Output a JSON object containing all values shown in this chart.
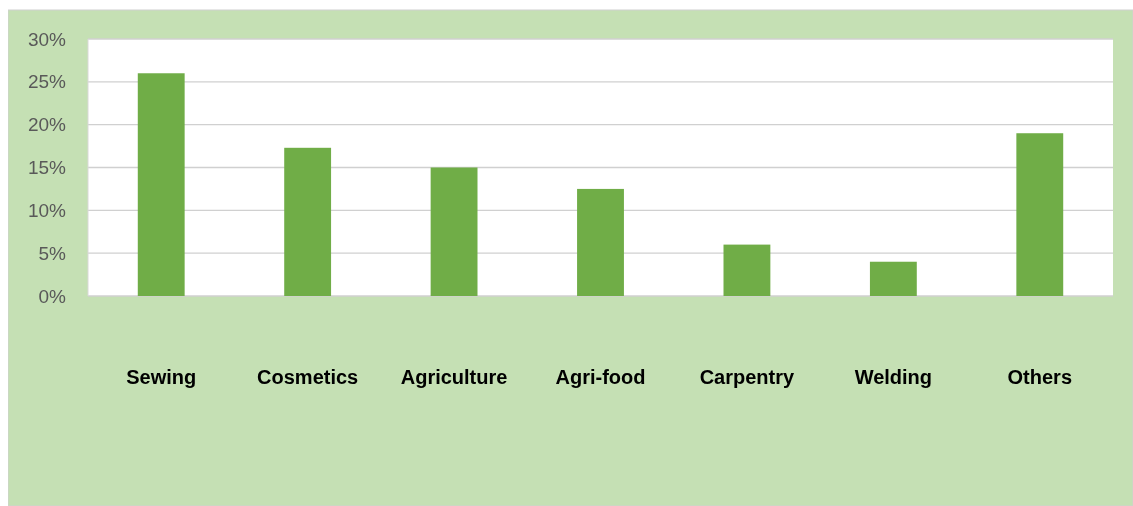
{
  "chart_data": {
    "type": "bar",
    "categories": [
      "Sewing",
      "Cosmetics",
      "Agriculture",
      "Agri-food",
      "Carpentry",
      "Welding",
      "Others"
    ],
    "values": [
      26,
      17.3,
      15,
      12.5,
      6,
      4,
      19
    ],
    "color": "#70ad47",
    "ylim": [
      0,
      30
    ],
    "yticks": [
      {
        "value": 0,
        "label": "0%"
      },
      {
        "value": 5,
        "label": "5%"
      },
      {
        "value": 10,
        "label": "10%"
      },
      {
        "value": 15,
        "label": "15%"
      },
      {
        "value": 20,
        "label": "20%"
      },
      {
        "value": 25,
        "label": "25%"
      },
      {
        "value": 30,
        "label": "30%"
      }
    ],
    "grid": "y"
  }
}
